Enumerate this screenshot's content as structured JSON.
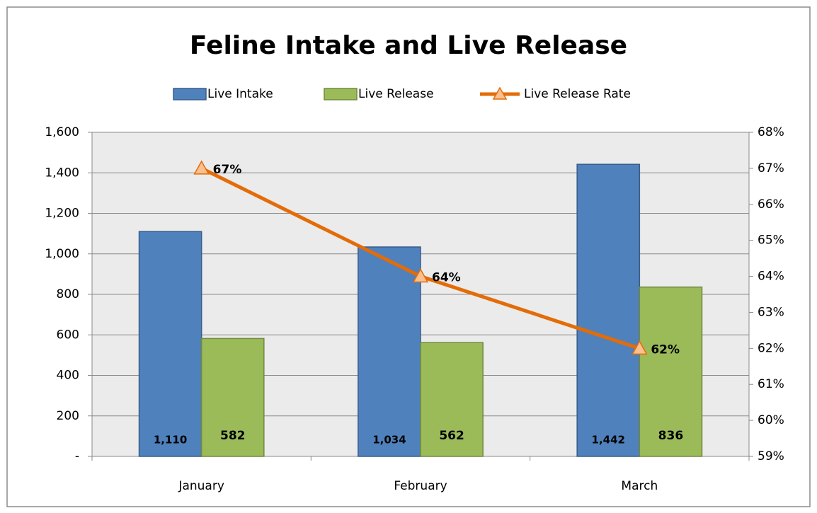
{
  "chart_data": {
    "type": "bar",
    "title": "Feline Intake and Live Release",
    "categories": [
      "January",
      "February",
      "March"
    ],
    "series": [
      {
        "name": "Live Intake",
        "color": "#4f81bd",
        "values": [
          1110,
          1034,
          1442
        ],
        "value_labels": [
          "1,110",
          "1,034",
          "1,442"
        ]
      },
      {
        "name": "Live Release",
        "color": "#9bbb59",
        "values": [
          582,
          562,
          836
        ]
      },
      {
        "name": "Live Release Rate",
        "type": "line",
        "axis": "y2",
        "color": "#e36c09",
        "values": [
          67,
          64,
          62
        ],
        "value_labels": [
          "67%",
          "64%",
          "62%"
        ]
      }
    ],
    "ylim": [
      0,
      1600
    ],
    "yticks": [
      {
        "value": 0,
        "label": "-"
      },
      200,
      400,
      600,
      800,
      {
        "value": 1000,
        "label": "1,000"
      },
      {
        "value": 1200,
        "label": "1,200"
      },
      {
        "value": 1400,
        "label": "1,400"
      },
      {
        "value": 1600,
        "label": "1,600"
      }
    ],
    "y2lim": [
      59,
      68
    ],
    "y2ticks": [
      {
        "value": 59,
        "label": "59%"
      },
      {
        "value": 60,
        "label": "60%"
      },
      {
        "value": 61,
        "label": "61%"
      },
      {
        "value": 62,
        "label": "62%"
      },
      {
        "value": 63,
        "label": "63%"
      },
      {
        "value": 64,
        "label": "64%"
      },
      {
        "value": 65,
        "label": "65%"
      },
      {
        "value": 66,
        "label": "66%"
      },
      {
        "value": 67,
        "label": "67%"
      },
      {
        "value": 68,
        "label": "68%"
      }
    ],
    "grid": true,
    "legend": "top"
  }
}
